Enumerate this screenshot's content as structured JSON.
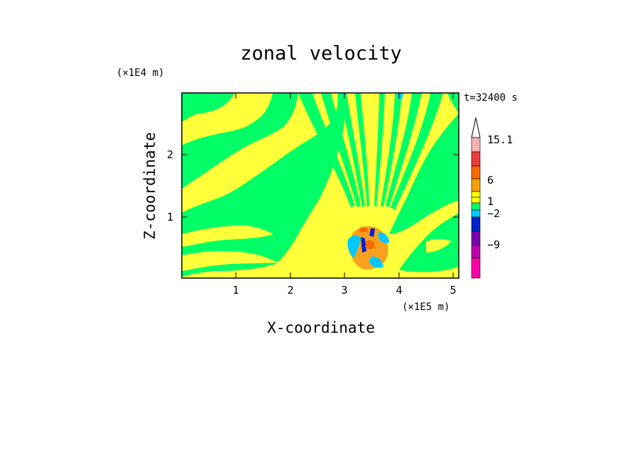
{
  "chart_data": {
    "type": "heatmap",
    "title": "zonal velocity",
    "xlabel": "X-coordinate",
    "ylabel": "Z-coordinate",
    "x_unit": "(×1E5 m)",
    "y_unit": "(×1E4 m)",
    "time_label": "t=32400 s",
    "xlim": [
      0,
      5.12
    ],
    "ylim": [
      0,
      2.95
    ],
    "x_ticks": [
      "1",
      "2",
      "3",
      "4",
      "5"
    ],
    "y_ticks": [
      "1",
      "2"
    ],
    "colorbar": {
      "labels": [
        "15.1",
        "6",
        "1",
        "−2",
        "−9"
      ],
      "colors": [
        "#f7b3b3",
        "#ee3b3b",
        "#ff6600",
        "#f0a000",
        "#ffff00",
        "#00ff66",
        "#00c8ff",
        "#0022cc",
        "#7a00b0",
        "#c000b0",
        "#ff00aa"
      ]
    },
    "field_colors": {
      "dominant": "#ffff3a",
      "secondary": "#00ff66",
      "positive": "#f7a21e",
      "strong_positive": "#ff6a00",
      "negative": "#00c8ff",
      "strong_negative": "#0a1fd4"
    }
  }
}
